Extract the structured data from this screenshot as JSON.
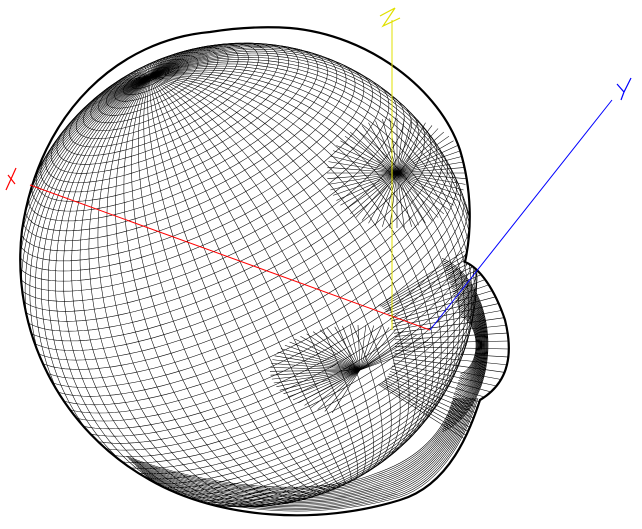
{
  "view": {
    "background": "#ffffff",
    "mesh_color": "#000000",
    "description_visible": false
  },
  "axes": [
    {
      "id": "x",
      "label": "X",
      "color": "#ff0000"
    },
    {
      "id": "y",
      "label": "Y",
      "color": "#0000ff"
    },
    {
      "id": "z",
      "label": "Z",
      "color": "#e0e000"
    }
  ],
  "mesh": {
    "type": "wireframe-surface",
    "latitude_lines": 72,
    "longitude_lines": 96
  }
}
